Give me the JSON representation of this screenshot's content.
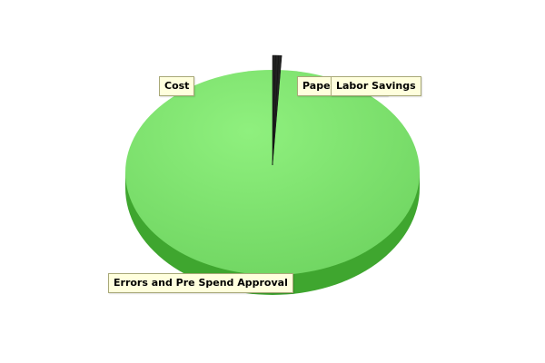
{
  "chart_data": {
    "type": "pie",
    "style": "3d",
    "title": "",
    "slices": [
      {
        "label": "Paper Savings",
        "value": 0.33
      },
      {
        "label": "Labor Savings",
        "value": 0.33
      },
      {
        "label": "Cost",
        "value": 0.34
      },
      {
        "label": "Errors and Pre Spend Approval",
        "value": 99.0
      }
    ],
    "colors": {
      "main_slice": "#6cd25e",
      "main_slice_highlight": "#8ff07e",
      "main_slice_side": "#3fa62f",
      "thin_slices": "#222222",
      "label_background": "#ffffdd",
      "label_border": "#a8a878"
    }
  }
}
